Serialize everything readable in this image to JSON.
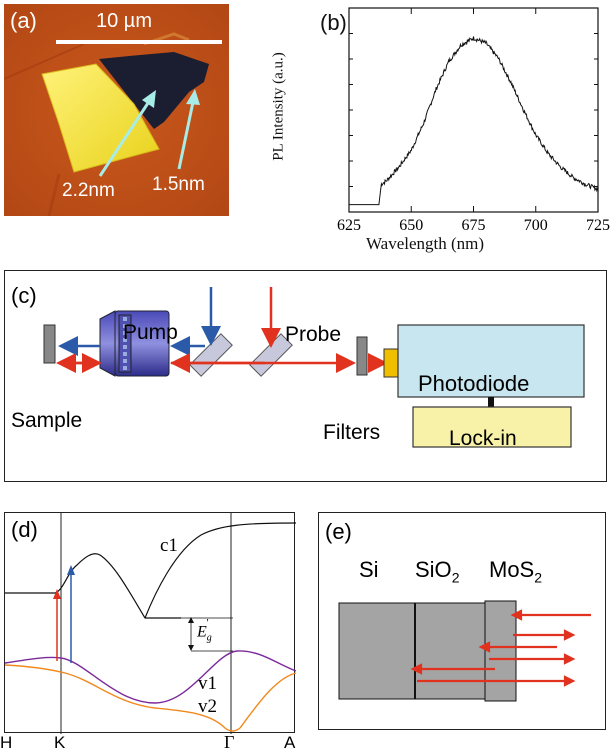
{
  "panel_a": {
    "label": "(a)",
    "scale_text": "10 µm",
    "annot1": "2.2nm",
    "annot2": "1.5nm"
  },
  "panel_b": {
    "label": "(b)",
    "ylabel": "PL Intensity (a.u.)",
    "xlabel": "Wavelength (nm)",
    "ticks": [
      "625",
      "650",
      "675",
      "700",
      "725"
    ]
  },
  "panel_c": {
    "label": "(c)",
    "pump": "Pump",
    "probe": "Probe",
    "sample": "Sample",
    "filters": "Filters",
    "photodiode": "Photodiode",
    "lockin": "Lock-in"
  },
  "panel_d": {
    "label": "(d)",
    "c1": "c1",
    "v1": "v1",
    "v2": "v2",
    "eg": "E",
    "eg_sub": "g",
    "eg_sup": "'",
    "x_ticks": [
      "H",
      "K",
      "Γ",
      "A"
    ]
  },
  "panel_e": {
    "label": "(e)",
    "si": "Si",
    "sio2": "SiO",
    "sio2_sub": "2",
    "mos2": "MoS",
    "mos2_sub": "2"
  },
  "chart_data": {
    "type": "line",
    "xlim": [
      625,
      725
    ],
    "x_ticks": [
      625,
      650,
      675,
      700,
      725
    ],
    "x": [
      625,
      630,
      635,
      637,
      638,
      640,
      645,
      650,
      655,
      660,
      665,
      670,
      675,
      680,
      685,
      690,
      695,
      700,
      705,
      710,
      715,
      720,
      725
    ],
    "y": [
      0.02,
      0.02,
      0.02,
      0.02,
      0.14,
      0.16,
      0.24,
      0.34,
      0.5,
      0.7,
      0.86,
      0.96,
      1.0,
      0.97,
      0.88,
      0.74,
      0.58,
      0.43,
      0.32,
      0.24,
      0.18,
      0.14,
      0.11
    ]
  },
  "colors": {
    "afm_bg": "#c2521a",
    "flake_yellow": "#f2e23a",
    "flake_dark": "#1a1c2e",
    "pump_blue": "#2a5aa8",
    "probe_red": "#e0321e",
    "photodiode": "#c8e6f0",
    "lockin": "#f8f2a8",
    "layer_gray": "#a4a4a4",
    "v1_purple": "#7a2a9a",
    "v2_orange": "#f08a1e"
  }
}
